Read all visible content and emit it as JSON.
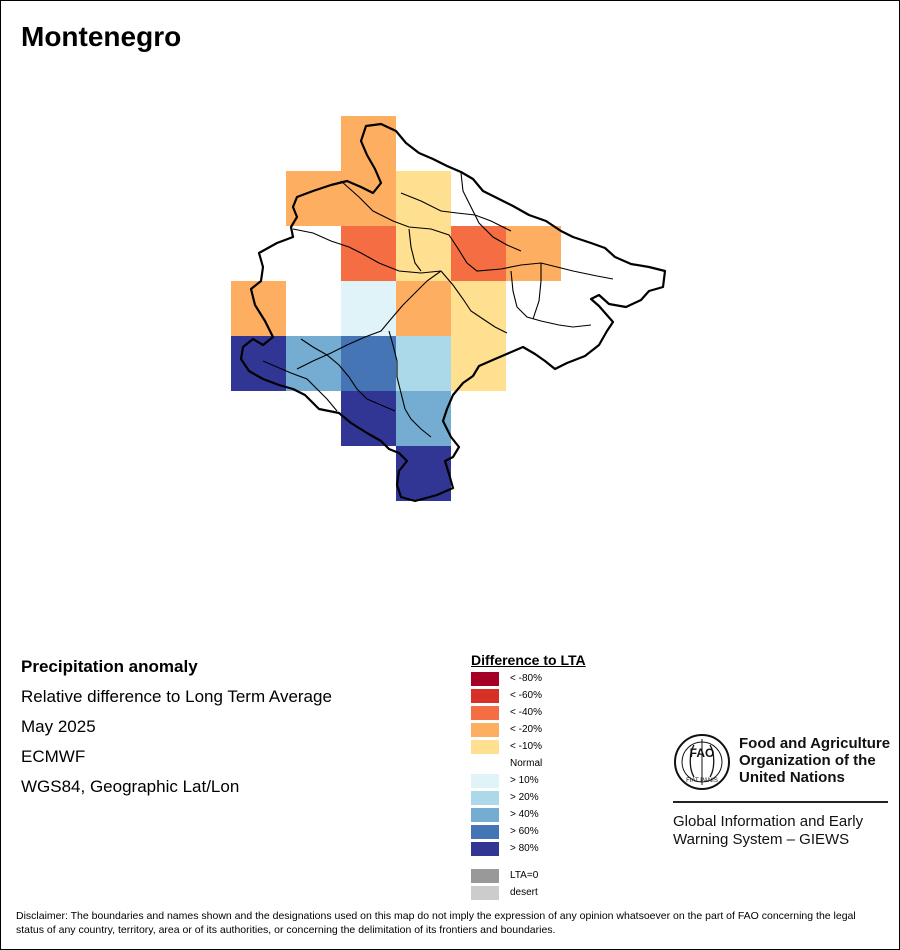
{
  "title": "Montenegro",
  "info": {
    "heading": "Precipitation anomaly",
    "subtitle": "Relative difference to Long Term Average",
    "period": "May 2025",
    "source": "ECMWF",
    "projection": "WGS84, Geographic Lat/Lon"
  },
  "legend": {
    "title": "Difference to LTA",
    "items": [
      {
        "label": "< -80%",
        "color": "#a50026"
      },
      {
        "label": "< -60%",
        "color": "#d73027"
      },
      {
        "label": "< -40%",
        "color": "#f46d43"
      },
      {
        "label": "< -20%",
        "color": "#fdae61"
      },
      {
        "label": "< -10%",
        "color": "#fee090"
      },
      {
        "label": "Normal",
        "color": "#ffffff"
      },
      {
        "label": "> 10%",
        "color": "#e0f3f8"
      },
      {
        "label": "> 20%",
        "color": "#abd9e9"
      },
      {
        "label": "> 40%",
        "color": "#74add1"
      },
      {
        "label": "> 60%",
        "color": "#4575b4"
      },
      {
        "label": "> 80%",
        "color": "#313695"
      }
    ],
    "extra": [
      {
        "label": "LTA=0",
        "color": "#999999"
      },
      {
        "label": "desert",
        "color": "#cccccc"
      }
    ]
  },
  "grid": {
    "columns": 7,
    "rows": 7,
    "cells": [
      [
        null,
        null,
        "< -20%",
        null,
        null,
        null,
        null
      ],
      [
        null,
        "< -20%",
        "< -20%",
        "< -10%",
        null,
        null,
        null
      ],
      [
        null,
        null,
        "< -40%",
        "< -10%",
        "< -40%",
        "< -20%",
        null
      ],
      [
        "< -20%",
        null,
        "> 10%",
        "< -20%",
        "< -10%",
        null,
        null
      ],
      [
        "> 80%",
        "> 40%",
        "> 60%",
        "> 20%",
        "< -10%",
        null,
        null
      ],
      [
        null,
        null,
        "> 80%",
        "> 40%",
        null,
        null,
        null
      ],
      [
        null,
        null,
        null,
        "> 80%",
        null,
        null,
        null
      ]
    ]
  },
  "logo": {
    "name_line1": "Food and Agriculture",
    "name_line2": "Organization of the",
    "name_line3": "United Nations",
    "sub_line1": "Global Information and Early",
    "sub_line2": "Warning System – GIEWS",
    "emblem_text": "FAO",
    "motto": "FIAT PANIS"
  },
  "disclaimer": "Disclaimer: The boundaries and names shown and the designations used on this map do not imply the expression of any opinion whatsoever on the part of FAO concerning the legal status of any country, territory, area or of its authorities, or concerning the delimitation of its frontiers and boundaries."
}
